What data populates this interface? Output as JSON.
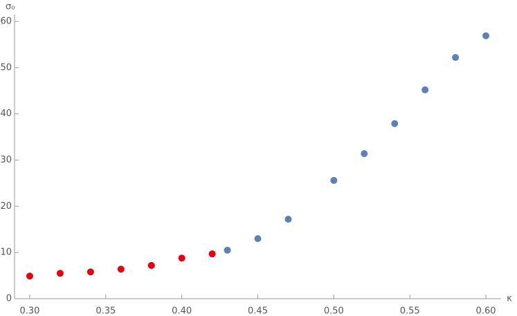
{
  "chart_data": {
    "type": "scatter",
    "x_label": "κ",
    "y_label": "σ₀",
    "series": [
      {
        "color": "#e8000b",
        "x": [
          0.3,
          0.32,
          0.34,
          0.36,
          0.38,
          0.4,
          0.42
        ],
        "values": [
          4.9,
          5.5,
          5.8,
          6.4,
          7.2,
          8.8,
          9.7
        ]
      },
      {
        "color": "#5e81b5",
        "x": [
          0.43,
          0.45,
          0.47,
          0.5,
          0.52,
          0.54,
          0.56,
          0.58,
          0.6
        ],
        "values": [
          10.5,
          13.0,
          17.2,
          25.6,
          31.4,
          37.9,
          45.2,
          52.2,
          56.9
        ]
      }
    ],
    "xlim": [
      0.29,
      0.61
    ],
    "ylim": [
      0,
      61.5
    ],
    "xticks": [
      {
        "value": 0.3,
        "label": "0.30"
      },
      {
        "value": 0.35,
        "label": "0.35"
      },
      {
        "value": 0.4,
        "label": "0.40"
      },
      {
        "value": 0.45,
        "label": "0.45"
      },
      {
        "value": 0.5,
        "label": "0.50"
      },
      {
        "value": 0.55,
        "label": "0.55"
      },
      {
        "value": 0.6,
        "label": "0.60"
      }
    ],
    "yticks": [
      0,
      10,
      20,
      30,
      40,
      50,
      60
    ]
  }
}
